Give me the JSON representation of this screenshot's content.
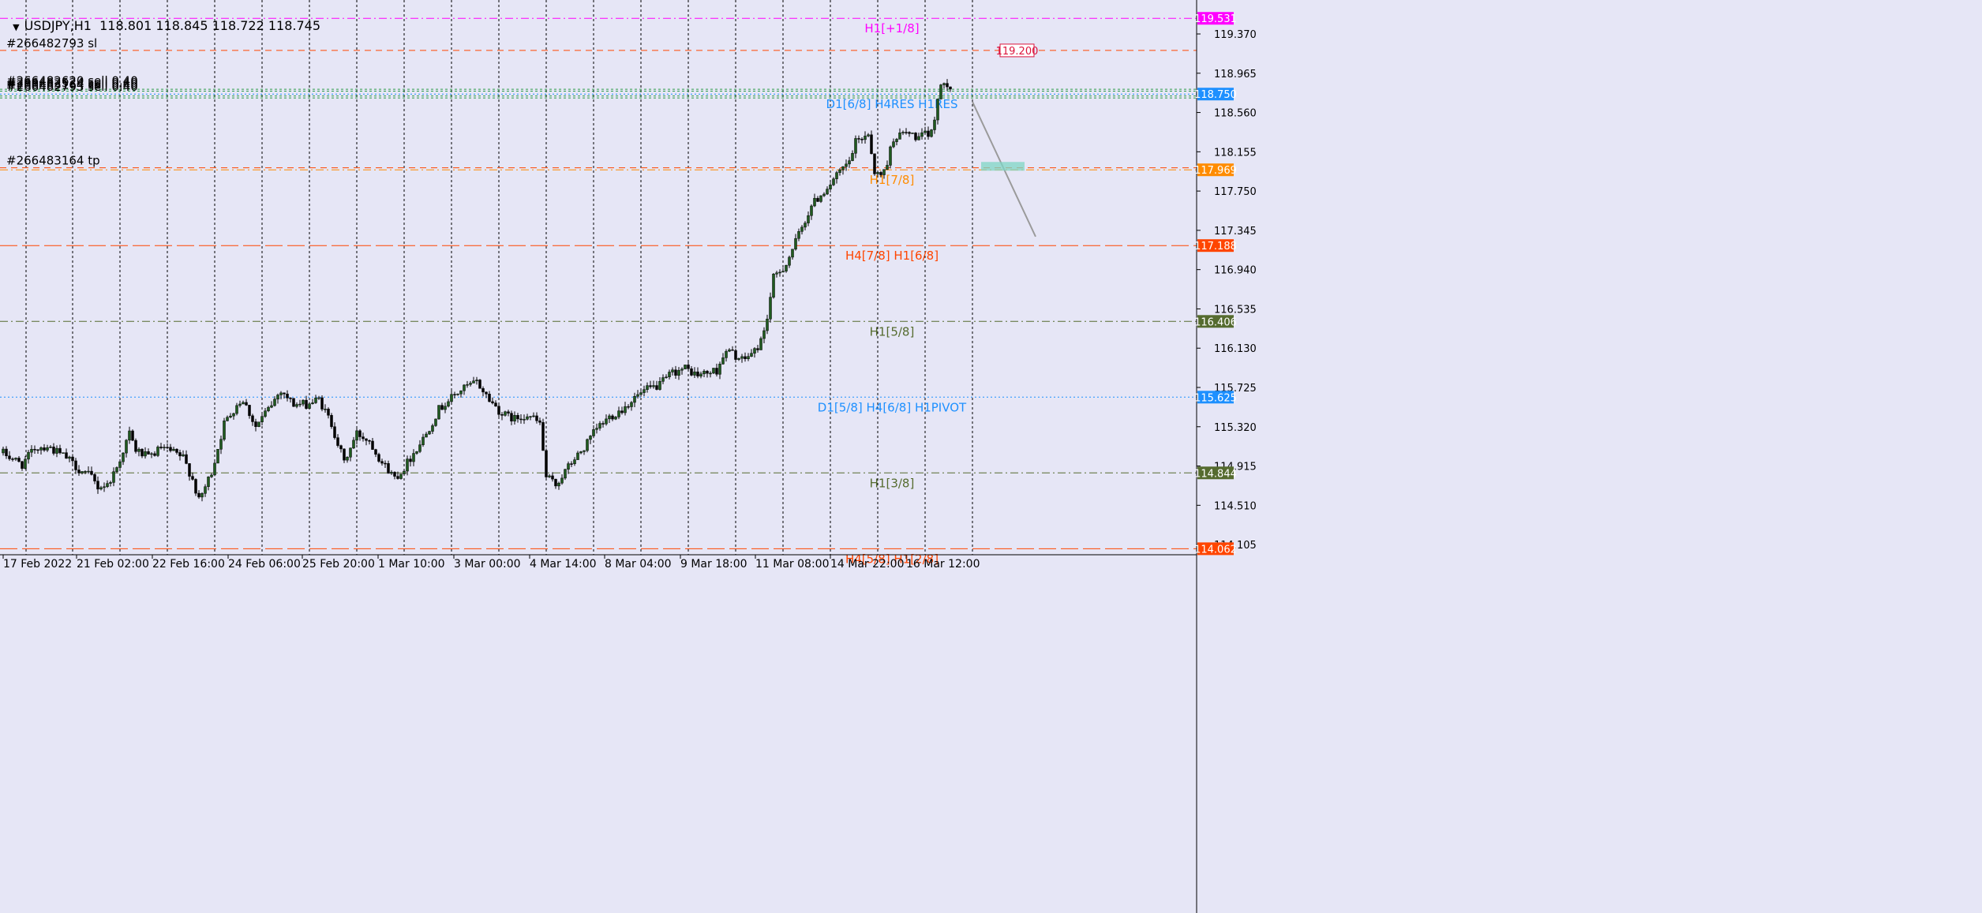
{
  "header": {
    "symbol": "USDJPY,H1",
    "ohlc": "118.801 118.845 118.722 118.745"
  },
  "colors": {
    "background": "#e6e6f6",
    "axis": "#000000",
    "grid": "#000000",
    "bull": "#1f5a1f",
    "bear": "#000000",
    "magenta": "#ff00ff",
    "orange_red": "#ff4500",
    "orange": "#ff8c00",
    "olive": "#556b2f",
    "blue": "#1e90ff",
    "green": "#2e9a48",
    "crimson": "#dc143c",
    "teal": "#7fd6c4",
    "trend": "#9a9a9a"
  },
  "chart_data": {
    "type": "candlestick",
    "y_axis": {
      "min": 114.0,
      "max": 119.72,
      "ticks": [
        "119.370",
        "118.965",
        "118.560",
        "118.155",
        "117.750",
        "117.345",
        "116.940",
        "116.535",
        "116.130",
        "115.725",
        "115.320",
        "114.915",
        "114.510",
        "114.105"
      ]
    },
    "x_axis": {
      "labels": [
        "17 Feb 2022",
        "21 Feb 02:00",
        "22 Feb 16:00",
        "24 Feb 06:00",
        "25 Feb 20:00",
        "1 Mar 10:00",
        "3 Mar 00:00",
        "4 Mar 14:00",
        "8 Mar 04:00",
        "9 Mar 18:00",
        "11 Mar 08:00",
        "14 Mar 22:00",
        "16 Mar 12:00"
      ],
      "total_bars": 301
    },
    "close_path": [
      [
        0,
        115.05
      ],
      [
        6,
        114.93
      ],
      [
        10,
        115.1
      ],
      [
        14,
        115.12
      ],
      [
        20,
        115.0
      ],
      [
        24,
        114.88
      ],
      [
        28,
        114.8
      ],
      [
        30,
        114.7
      ],
      [
        33,
        114.72
      ],
      [
        36,
        114.9
      ],
      [
        40,
        115.25
      ],
      [
        42,
        115.08
      ],
      [
        46,
        115.0
      ],
      [
        50,
        115.1
      ],
      [
        54,
        115.05
      ],
      [
        57,
        115.0
      ],
      [
        60,
        114.78
      ],
      [
        62,
        114.55
      ],
      [
        66,
        114.85
      ],
      [
        70,
        115.35
      ],
      [
        74,
        115.55
      ],
      [
        76,
        115.6
      ],
      [
        80,
        115.32
      ],
      [
        84,
        115.5
      ],
      [
        88,
        115.7
      ],
      [
        92,
        115.55
      ],
      [
        96,
        115.55
      ],
      [
        100,
        115.6
      ],
      [
        104,
        115.35
      ],
      [
        108,
        114.95
      ],
      [
        112,
        115.25
      ],
      [
        116,
        115.18
      ],
      [
        120,
        114.95
      ],
      [
        124,
        114.8
      ],
      [
        126,
        114.85
      ],
      [
        130,
        115.05
      ],
      [
        134,
        115.25
      ],
      [
        138,
        115.5
      ],
      [
        142,
        115.62
      ],
      [
        146,
        115.72
      ],
      [
        150,
        115.78
      ],
      [
        154,
        115.6
      ],
      [
        158,
        115.45
      ],
      [
        162,
        115.4
      ],
      [
        166,
        115.45
      ],
      [
        170,
        115.35
      ],
      [
        172,
        114.8
      ],
      [
        175,
        114.72
      ],
      [
        180,
        114.95
      ],
      [
        184,
        115.1
      ],
      [
        188,
        115.3
      ],
      [
        192,
        115.42
      ],
      [
        196,
        115.5
      ],
      [
        200,
        115.62
      ],
      [
        204,
        115.7
      ],
      [
        208,
        115.75
      ],
      [
        212,
        115.88
      ],
      [
        216,
        115.92
      ],
      [
        220,
        115.85
      ],
      [
        226,
        115.9
      ],
      [
        228,
        116.05
      ],
      [
        230,
        116.1
      ],
      [
        234,
        116.0
      ],
      [
        238,
        116.1
      ],
      [
        240,
        116.2
      ],
      [
        242,
        116.45
      ],
      [
        244,
        116.85
      ],
      [
        248,
        117.0
      ],
      [
        252,
        117.3
      ],
      [
        256,
        117.6
      ],
      [
        260,
        117.75
      ],
      [
        264,
        117.9
      ],
      [
        268,
        118.05
      ],
      [
        270,
        118.25
      ],
      [
        274,
        118.35
      ],
      [
        276,
        117.95
      ],
      [
        278,
        117.9
      ],
      [
        280,
        118.05
      ],
      [
        282,
        118.3
      ],
      [
        286,
        118.35
      ],
      [
        290,
        118.3
      ],
      [
        294,
        118.35
      ],
      [
        296,
        118.7
      ],
      [
        298,
        118.9
      ],
      [
        301,
        118.8
      ]
    ],
    "vertical_gridlines_x": [
      33,
      92,
      152,
      212,
      272,
      332,
      392,
      452,
      512,
      572,
      632,
      692,
      752,
      812,
      872,
      932,
      992,
      1052,
      1112,
      1172,
      1232
    ],
    "horizontal_levels": [
      {
        "price": 119.531,
        "label": "H1[+1/8]",
        "price_label": "119.531",
        "color": "magenta",
        "dash": "10,4,2,4",
        "label_x": 1130
      },
      {
        "price": 119.2,
        "label": "#266482793 sl",
        "price_label": "119.200",
        "color": "orange_red",
        "dash": "8,6",
        "label_x": 8,
        "label_align": "left",
        "label_color": "#000000",
        "price_box": "marker"
      },
      {
        "price": 118.8,
        "label": "",
        "price_label": "",
        "color": "green",
        "dash": "3,3"
      },
      {
        "price": 118.78,
        "label": "",
        "price_label": "",
        "color": "green",
        "dash": "3,3"
      },
      {
        "price": 118.75,
        "label": "D1[6/8] H4RES H1RES",
        "price_label": "118.750",
        "color": "blue",
        "dash": "2,3",
        "label_x": 1130
      },
      {
        "price": 118.73,
        "label": "",
        "price_label": "",
        "color": "green",
        "dash": "3,3"
      },
      {
        "price": 118.71,
        "label": "",
        "price_label": "",
        "color": "green",
        "dash": "3,3"
      },
      {
        "price": 117.99,
        "label": "#266483164 tp",
        "price_label": "",
        "color": "orange_red",
        "dash": "8,6",
        "label_x": 8,
        "label_align": "left",
        "label_color": "#000000"
      },
      {
        "price": 117.969,
        "label": "H1[7/8]",
        "price_label": "117.969",
        "color": "orange",
        "dash": "10,4,2,4",
        "label_x": 1130
      },
      {
        "price": 117.188,
        "label": "H4[7/8] H1[6/8]",
        "price_label": "117.188",
        "color": "orange_red",
        "dash": "22,6",
        "label_x": 1130
      },
      {
        "price": 116.406,
        "label": "H1[5/8]",
        "price_label": "116.406",
        "color": "olive",
        "dash": "10,4,2,4",
        "label_x": 1130
      },
      {
        "price": 115.625,
        "label": "D1[5/8] H4[6/8] H1PIVOT",
        "price_label": "115.625",
        "color": "blue",
        "dash": "2,3",
        "label_x": 1130
      },
      {
        "price": 114.844,
        "label": "H1[3/8]",
        "price_label": "114.844",
        "color": "olive",
        "dash": "10,4,2,4",
        "label_x": 1130
      },
      {
        "price": 114.062,
        "label": "H4[5/8] H1[2/8]",
        "price_label": "114.062",
        "color": "orange_red",
        "dash": "22,6",
        "label_x": 1130
      }
    ],
    "order_labels": [
      "#266482620 sell 0.40",
      "#266482524 sell 0.40",
      "#266483164 sell 0.40",
      "#266482793 sell 0.40"
    ],
    "trendline": {
      "x1": 1232,
      "p1": 118.67,
      "x2": 1312,
      "p2": 117.28
    },
    "teal_box": {
      "x1": 1243,
      "x2": 1298,
      "p1": 118.05,
      "p2": 117.96
    }
  }
}
